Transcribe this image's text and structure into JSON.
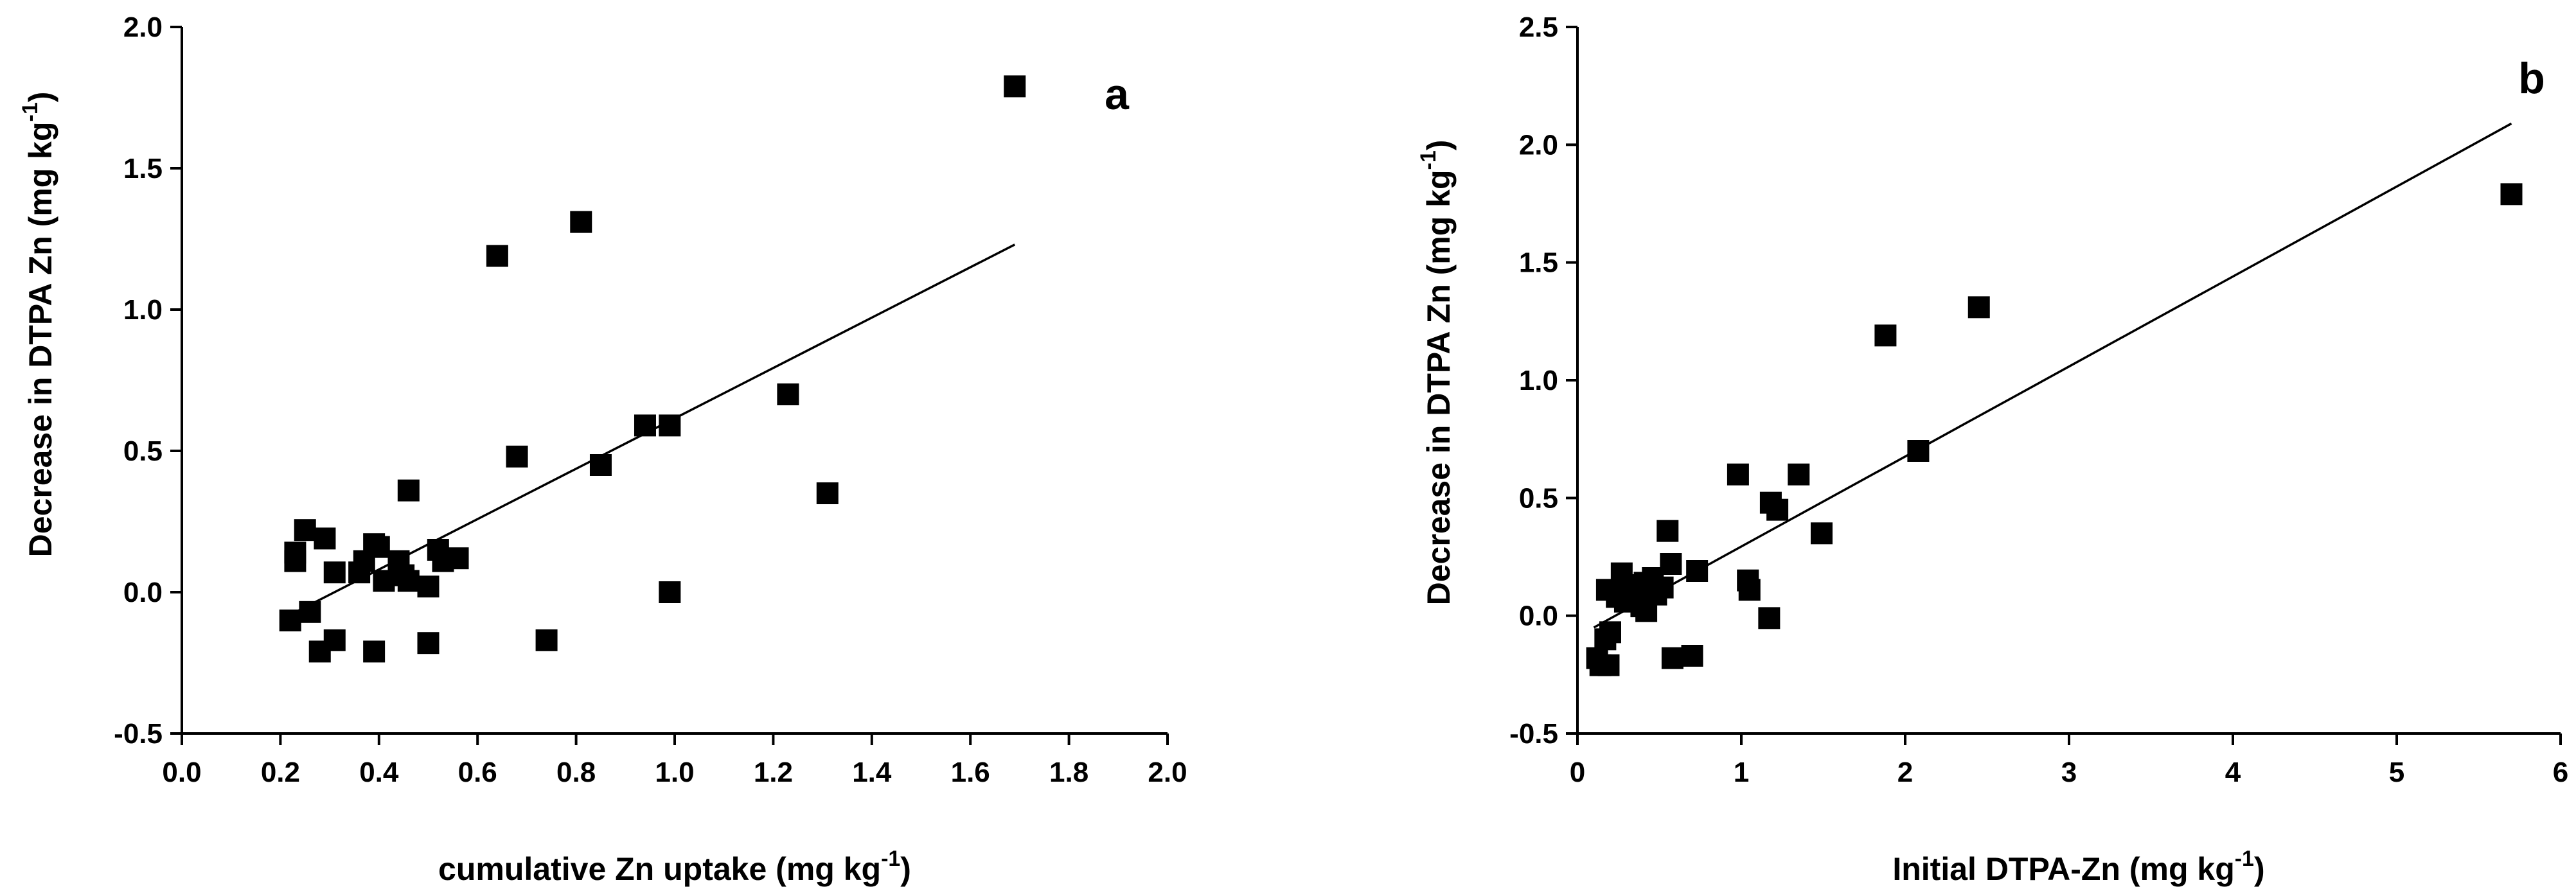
{
  "chart_data": [
    {
      "type": "scatter",
      "panel_label": "a",
      "xlabel": "cumulative Zn uptake (mg kg",
      "xlabel_sup": "-1",
      "xlabel_end": ")",
      "ylabel": "Decrease in DTPA Zn (mg kg",
      "ylabel_sup": "-1",
      "ylabel_end": ")",
      "xlim": [
        0.0,
        2.0
      ],
      "ylim": [
        -0.5,
        2.0
      ],
      "xticks": [
        0.0,
        0.2,
        0.4,
        0.6,
        0.8,
        1.0,
        1.2,
        1.4,
        1.6,
        1.8,
        2.0
      ],
      "xtick_labels": [
        "0.0",
        "0.2",
        "0.4",
        "0.6",
        "0.8",
        "1.0",
        "1.2",
        "1.4",
        "1.6",
        "1.8",
        "2.0"
      ],
      "yticks": [
        -0.5,
        0.0,
        0.5,
        1.0,
        1.5,
        2.0
      ],
      "ytick_labels": [
        "-0.5",
        "0.0",
        "0.5",
        "1.0",
        "1.5",
        "2.0"
      ],
      "points": [
        [
          1.69,
          1.79
        ],
        [
          0.81,
          1.31
        ],
        [
          0.64,
          1.19
        ],
        [
          1.23,
          0.7
        ],
        [
          0.94,
          0.59
        ],
        [
          0.99,
          0.59
        ],
        [
          0.68,
          0.48
        ],
        [
          0.85,
          0.45
        ],
        [
          0.46,
          0.36
        ],
        [
          1.31,
          0.35
        ],
        [
          0.25,
          0.22
        ],
        [
          0.29,
          0.19
        ],
        [
          0.23,
          0.14
        ],
        [
          0.39,
          0.17
        ],
        [
          0.4,
          0.16
        ],
        [
          0.52,
          0.15
        ],
        [
          0.23,
          0.11
        ],
        [
          0.37,
          0.11
        ],
        [
          0.44,
          0.11
        ],
        [
          0.56,
          0.12
        ],
        [
          0.53,
          0.11
        ],
        [
          0.31,
          0.07
        ],
        [
          0.36,
          0.07
        ],
        [
          0.45,
          0.06
        ],
        [
          0.41,
          0.04
        ],
        [
          0.46,
          0.04
        ],
        [
          0.5,
          0.02
        ],
        [
          0.99,
          0.0
        ],
        [
          0.26,
          -0.07
        ],
        [
          0.22,
          -0.1
        ],
        [
          0.31,
          -0.17
        ],
        [
          0.5,
          -0.18
        ],
        [
          0.74,
          -0.17
        ],
        [
          0.28,
          -0.21
        ],
        [
          0.39,
          -0.21
        ]
      ],
      "fit_line": {
        "x": [
          0.22,
          1.69
        ],
        "y": [
          -0.08,
          1.23
        ]
      }
    },
    {
      "type": "scatter",
      "panel_label": "b",
      "xlabel": "Initial DTPA-Zn (mg kg",
      "xlabel_sup": "-1",
      "xlabel_end": ")",
      "ylabel": "Decrease in DTPA Zn (mg kg",
      "ylabel_sup": "-1",
      "ylabel_end": ")",
      "xlim": [
        0,
        6
      ],
      "ylim": [
        -0.5,
        2.5
      ],
      "xticks": [
        0,
        1,
        2,
        3,
        4,
        5,
        6
      ],
      "xtick_labels": [
        "0",
        "1",
        "2",
        "3",
        "4",
        "5",
        "6"
      ],
      "yticks": [
        -0.5,
        0.0,
        0.5,
        1.0,
        1.5,
        2.0,
        2.5
      ],
      "ytick_labels": [
        "-0.5",
        "0.0",
        "0.5",
        "1.0",
        "1.5",
        "2.0",
        "2.5"
      ],
      "points": [
        [
          5.7,
          1.79
        ],
        [
          2.45,
          1.31
        ],
        [
          1.88,
          1.19
        ],
        [
          2.08,
          0.7
        ],
        [
          0.98,
          0.6
        ],
        [
          1.35,
          0.6
        ],
        [
          1.18,
          0.48
        ],
        [
          1.22,
          0.45
        ],
        [
          0.55,
          0.36
        ],
        [
          1.49,
          0.35
        ],
        [
          0.57,
          0.22
        ],
        [
          0.27,
          0.18
        ],
        [
          0.73,
          0.19
        ],
        [
          0.46,
          0.16
        ],
        [
          1.04,
          0.15
        ],
        [
          0.18,
          0.11
        ],
        [
          0.28,
          0.11
        ],
        [
          0.36,
          0.13
        ],
        [
          0.41,
          0.14
        ],
        [
          0.52,
          0.12
        ],
        [
          1.05,
          0.11
        ],
        [
          0.24,
          0.08
        ],
        [
          0.29,
          0.06
        ],
        [
          0.33,
          0.07
        ],
        [
          0.48,
          0.09
        ],
        [
          0.39,
          0.04
        ],
        [
          0.42,
          0.02
        ],
        [
          1.17,
          -0.01
        ],
        [
          0.2,
          -0.07
        ],
        [
          0.17,
          -0.1
        ],
        [
          0.12,
          -0.18
        ],
        [
          0.58,
          -0.18
        ],
        [
          0.7,
          -0.17
        ],
        [
          0.14,
          -0.21
        ],
        [
          0.19,
          -0.21
        ]
      ],
      "fit_line": {
        "x": [
          0.1,
          5.7
        ],
        "y": [
          -0.05,
          2.09
        ]
      }
    }
  ]
}
